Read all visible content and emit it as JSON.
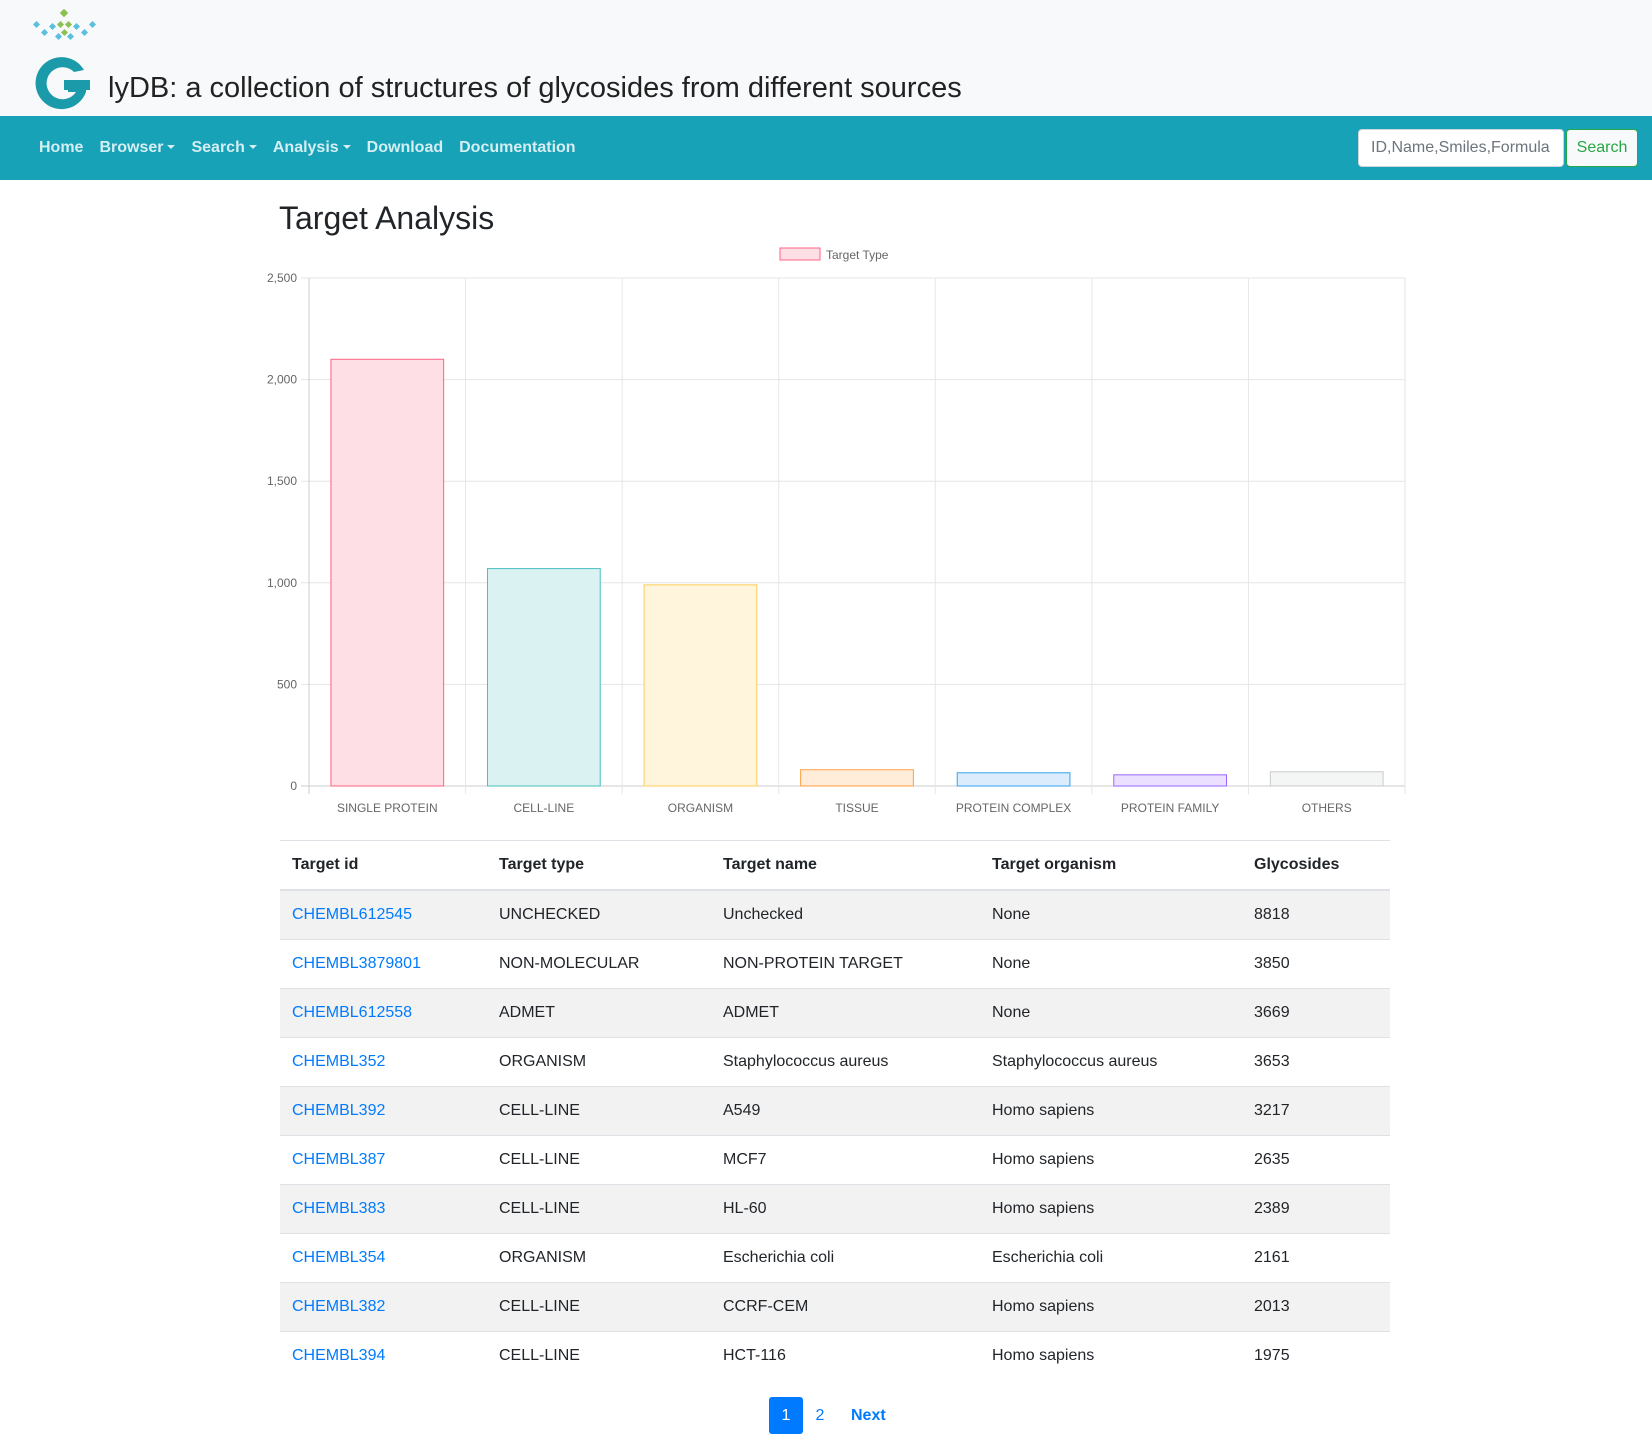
{
  "site": {
    "brand_letter": "G",
    "brand_rest": "lyDB",
    "tagline": ": a collection of structures of glycosides from different sources"
  },
  "nav": {
    "items": [
      {
        "label": "Home",
        "dropdown": false
      },
      {
        "label": "Browser",
        "dropdown": true
      },
      {
        "label": "Search",
        "dropdown": true
      },
      {
        "label": "Analysis",
        "dropdown": true
      },
      {
        "label": "Download",
        "dropdown": false
      },
      {
        "label": "Documentation",
        "dropdown": false
      }
    ],
    "search_placeholder": "ID,Name,Smiles,Formula",
    "search_button": "Search"
  },
  "page": {
    "title": "Target Analysis"
  },
  "chart_data": {
    "type": "bar",
    "categories": [
      "SINGLE PROTEIN",
      "CELL-LINE",
      "ORGANISM",
      "TISSUE",
      "PROTEIN COMPLEX",
      "PROTEIN FAMILY",
      "OTHERS"
    ],
    "series": [
      {
        "name": "Target Type",
        "values": [
          2100,
          1070,
          990,
          80,
          65,
          55,
          70
        ]
      }
    ],
    "ylim": [
      0,
      2500
    ],
    "yticks": [
      0,
      500,
      1000,
      1500,
      2000,
      2500
    ],
    "ytick_labels": [
      "0",
      "500",
      "1,000",
      "1,500",
      "2,000",
      "2,500"
    ],
    "legend": "top-center",
    "grid": true,
    "colors": {
      "fill": [
        "#ffdfe6",
        "#dbf2f2",
        "#fff5dd",
        "#ffecd9",
        "#dbedfc",
        "#ebe0ff",
        "#f4f5f5"
      ],
      "stroke": [
        "#ff6384",
        "#4bc0c0",
        "#ffcd56",
        "#ff9f40",
        "#36a2eb",
        "#9966ff",
        "#c9cbcf"
      ]
    }
  },
  "table": {
    "headers": [
      "Target id",
      "Target type",
      "Target name",
      "Target organism",
      "Glycosides"
    ],
    "rows": [
      [
        "CHEMBL612545",
        "UNCHECKED",
        "Unchecked",
        "None",
        "8818"
      ],
      [
        "CHEMBL3879801",
        "NON-MOLECULAR",
        "NON-PROTEIN TARGET",
        "None",
        "3850"
      ],
      [
        "CHEMBL612558",
        "ADMET",
        "ADMET",
        "None",
        "3669"
      ],
      [
        "CHEMBL352",
        "ORGANISM",
        "Staphylococcus aureus",
        "Staphylococcus aureus",
        "3653"
      ],
      [
        "CHEMBL392",
        "CELL-LINE",
        "A549",
        "Homo sapiens",
        "3217"
      ],
      [
        "CHEMBL387",
        "CELL-LINE",
        "MCF7",
        "Homo sapiens",
        "2635"
      ],
      [
        "CHEMBL383",
        "CELL-LINE",
        "HL-60",
        "Homo sapiens",
        "2389"
      ],
      [
        "CHEMBL354",
        "ORGANISM",
        "Escherichia coli",
        "Escherichia coli",
        "2161"
      ],
      [
        "CHEMBL382",
        "CELL-LINE",
        "CCRF-CEM",
        "Homo sapiens",
        "2013"
      ],
      [
        "CHEMBL394",
        "CELL-LINE",
        "HCT-116",
        "Homo sapiens",
        "1975"
      ]
    ]
  },
  "pagination": {
    "pages": [
      "1",
      "2"
    ],
    "active": "1",
    "next": "Next"
  }
}
